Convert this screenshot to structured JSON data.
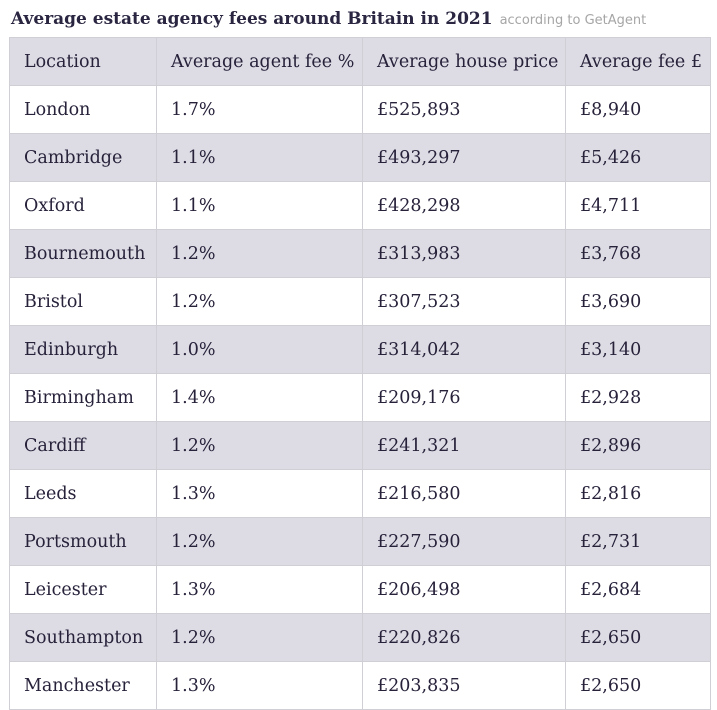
{
  "header": {
    "title": "Average estate agency fees around Britain in 2021",
    "source": "according to GetAgent"
  },
  "table": {
    "columns": [
      "Location",
      "Average agent fee %",
      "Average house price",
      "Average fee £"
    ],
    "rows": [
      [
        "London",
        "1.7%",
        "£525,893",
        "£8,940"
      ],
      [
        "Cambridge",
        "1.1%",
        "£493,297",
        "£5,426"
      ],
      [
        "Oxford",
        "1.1%",
        "£428,298",
        "£4,711"
      ],
      [
        "Bournemouth",
        "1.2%",
        "£313,983",
        "£3,768"
      ],
      [
        "Bristol",
        "1.2%",
        "£307,523",
        "£3,690"
      ],
      [
        "Edinburgh",
        "1.0%",
        "£314,042",
        "£3,140"
      ],
      [
        "Birmingham",
        "1.4%",
        "£209,176",
        "£2,928"
      ],
      [
        "Cardiff",
        "1.2%",
        "£241,321",
        "£2,896"
      ],
      [
        "Leeds",
        "1.3%",
        "£216,580",
        "£2,816"
      ],
      [
        "Portsmouth",
        "1.2%",
        "£227,590",
        "£2,731"
      ],
      [
        "Leicester",
        "1.3%",
        "£206,498",
        "£2,684"
      ],
      [
        "Southampton",
        "1.2%",
        "£220,826",
        "£2,650"
      ],
      [
        "Manchester",
        "1.3%",
        "£203,835",
        "£2,650"
      ]
    ]
  },
  "colors": {
    "stripe": "#dddce4",
    "text": "#27213a",
    "border": "#cfcfd5"
  }
}
